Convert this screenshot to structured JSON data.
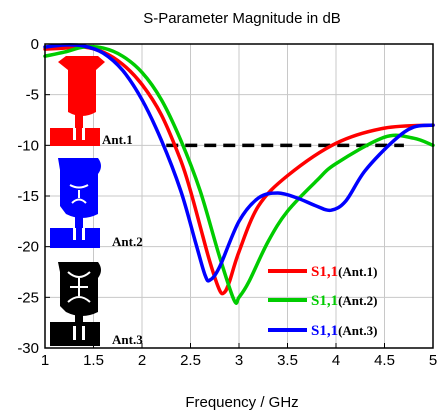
{
  "chart_data": {
    "type": "line",
    "title": "S-Parameter Magnitude in dB",
    "xlabel": "Frequency / GHz",
    "ylabel": "",
    "xlim": [
      1,
      5
    ],
    "ylim": [
      -30,
      0
    ],
    "x_ticks": [
      1,
      1.5,
      2,
      2.5,
      3,
      3.5,
      4,
      4.5,
      5
    ],
    "x_tick_labels": [
      "1",
      "1.5",
      "2",
      "2.5",
      "3",
      "3.5",
      "4",
      "4.5",
      "5"
    ],
    "y_ticks": [
      0,
      -5,
      -10,
      -15,
      -20,
      -25,
      -30
    ],
    "y_tick_labels": [
      "0",
      "-5",
      "-10",
      "-15",
      "-20",
      "-25",
      "-30"
    ],
    "grid": true,
    "legend_position": "bottom-right",
    "reference_line": {
      "y": -10,
      "x_start": 2.25,
      "x_end": 4.7,
      "style": "dashed",
      "color": "#000000"
    },
    "series": [
      {
        "name": "S1,1",
        "suffix": "(Ant.1)",
        "color": "#ff0000",
        "x": [
          1.0,
          1.2,
          1.4,
          1.6,
          1.8,
          2.0,
          2.2,
          2.4,
          2.5,
          2.6,
          2.7,
          2.8,
          2.85,
          2.9,
          3.0,
          3.2,
          3.5,
          4.0,
          4.5,
          5.0
        ],
        "y": [
          -0.5,
          -0.4,
          -0.3,
          -0.8,
          -2.0,
          -4.0,
          -7.0,
          -11.5,
          -14.5,
          -18.0,
          -21.5,
          -24.3,
          -24.5,
          -23.5,
          -20.5,
          -16.0,
          -13.0,
          -9.8,
          -8.3,
          -8.0
        ]
      },
      {
        "name": "S1,1",
        "suffix": "(Ant.2)",
        "color": "#00cc00",
        "x": [
          1.0,
          1.2,
          1.4,
          1.6,
          1.8,
          2.0,
          2.2,
          2.4,
          2.6,
          2.8,
          2.95,
          3.0,
          3.1,
          3.3,
          3.5,
          3.8,
          4.0,
          4.5,
          4.8,
          5.0
        ],
        "y": [
          -1.2,
          -0.8,
          -0.3,
          -0.4,
          -1.2,
          -2.8,
          -5.5,
          -9.5,
          -14.5,
          -21.0,
          -25.3,
          -25.0,
          -23.5,
          -19.5,
          -16.5,
          -13.5,
          -11.8,
          -9.2,
          -9.3,
          -10.0
        ]
      },
      {
        "name": "S1,1",
        "suffix": "(Ant.3)",
        "color": "#0000ff",
        "x": [
          1.0,
          1.2,
          1.4,
          1.6,
          1.8,
          2.0,
          2.2,
          2.4,
          2.55,
          2.65,
          2.7,
          2.8,
          3.0,
          3.2,
          3.4,
          3.6,
          3.8,
          3.95,
          4.1,
          4.3,
          4.6,
          4.8,
          5.0
        ],
        "y": [
          -0.3,
          -0.1,
          -0.2,
          -0.9,
          -2.6,
          -5.5,
          -9.5,
          -14.5,
          -19.5,
          -22.8,
          -23.3,
          -22.0,
          -17.5,
          -15.2,
          -14.7,
          -15.2,
          -16.0,
          -16.4,
          -15.5,
          -12.5,
          -9.5,
          -8.2,
          -8.0
        ]
      }
    ],
    "legend_entries": [
      {
        "series_label": "S1,1",
        "suffix": "(Ant.1)",
        "color": "#ff0000"
      },
      {
        "series_label": "S1,1",
        "suffix": "(Ant.2)",
        "color": "#00cc00"
      },
      {
        "series_label": "S1,1",
        "suffix": "(Ant.3)",
        "color": "#0000ff"
      }
    ],
    "inset_images": [
      {
        "label": "Ant.1",
        "color": "#ff0000",
        "icon": "antenna-1-icon"
      },
      {
        "label": "Ant.2",
        "color": "#0000ff",
        "icon": "antenna-2-icon"
      },
      {
        "label": "Ant.3",
        "color": "#000000",
        "icon": "antenna-3-icon"
      }
    ]
  }
}
